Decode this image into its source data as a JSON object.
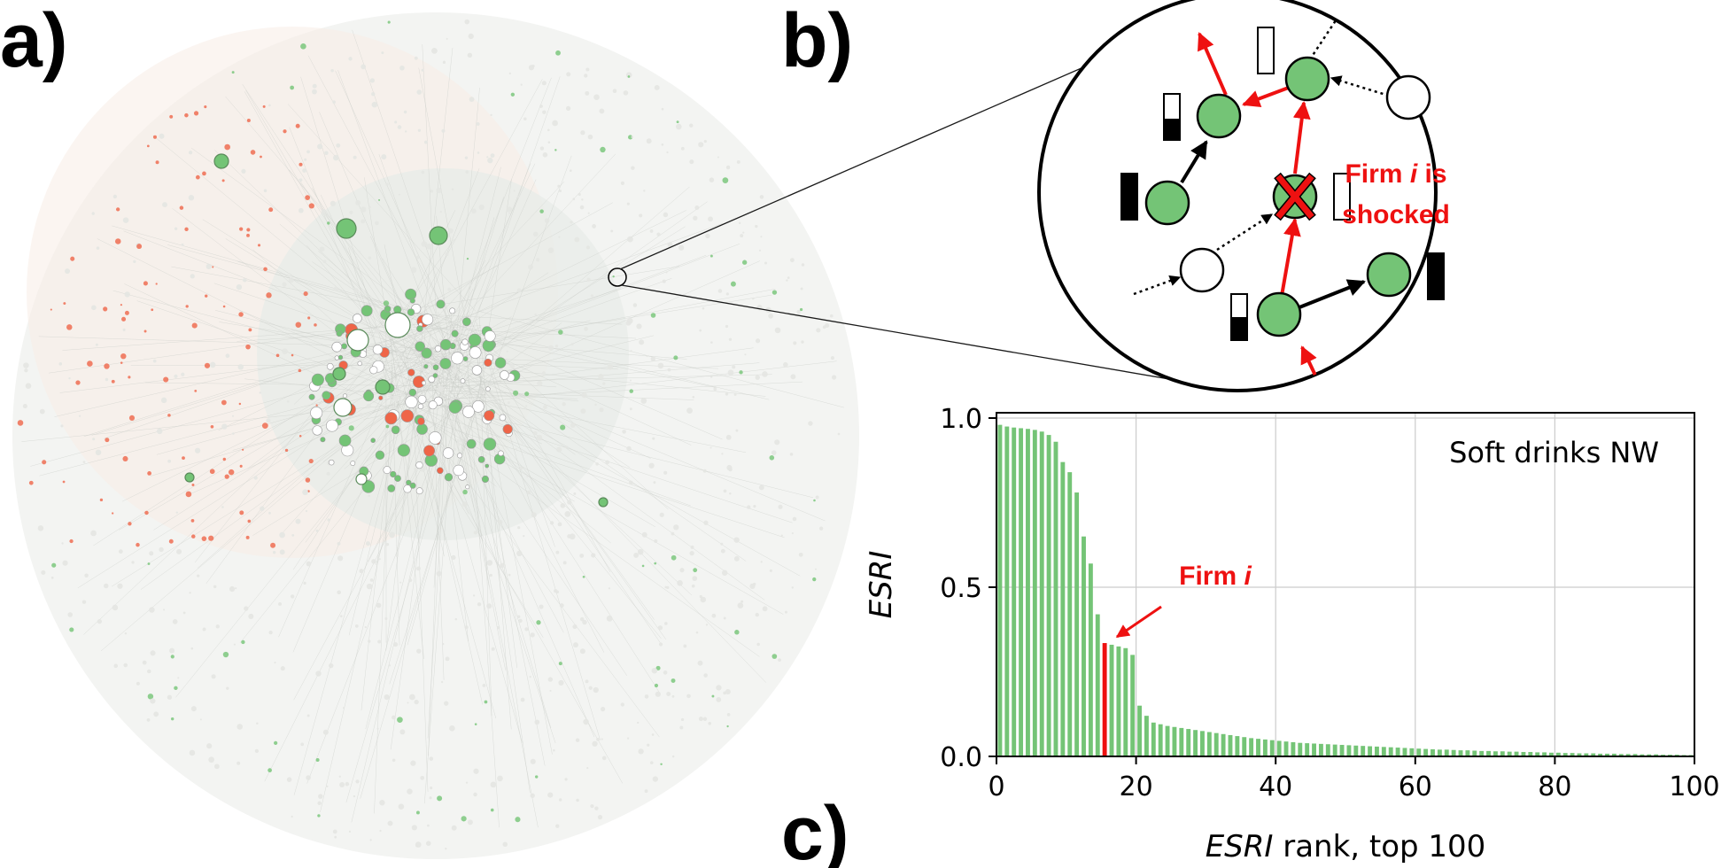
{
  "panels": {
    "a": "a)",
    "b": "b)",
    "c": "c)"
  },
  "colors": {
    "green": "#74c476",
    "red": "#ef6548",
    "edge_grey": "#d9d9d9",
    "shock_red": "#ee1111",
    "black": "#000000"
  },
  "network_inset": {
    "shock_label_line1": "Firm i is",
    "shock_label_line2": "shocked",
    "shock_label_italic": "i"
  },
  "chart_data": {
    "type": "bar",
    "title": "Soft drinks NW",
    "xlabel_italic": "ESRI",
    "xlabel_rest": " rank, top 100",
    "ylabel": "ESRI",
    "xlim": [
      0,
      100
    ],
    "ylim": [
      0,
      1.0
    ],
    "xticks": [
      0,
      20,
      40,
      60,
      80,
      100
    ],
    "yticks": [
      0.0,
      0.5,
      1.0
    ],
    "ytick_labels": [
      "0.0",
      "0.5",
      "1.0"
    ],
    "grid": true,
    "legend_position": "top-right",
    "highlight_rank": 16,
    "highlight_label_prefix": "Firm ",
    "highlight_label_italic": "i",
    "x": [
      1,
      2,
      3,
      4,
      5,
      6,
      7,
      8,
      9,
      10,
      11,
      12,
      13,
      14,
      15,
      16,
      17,
      18,
      19,
      20,
      21,
      22,
      23,
      24,
      25,
      26,
      27,
      28,
      29,
      30,
      31,
      32,
      33,
      34,
      35,
      36,
      37,
      38,
      39,
      40,
      41,
      42,
      43,
      44,
      45,
      46,
      47,
      48,
      49,
      50,
      51,
      52,
      53,
      54,
      55,
      56,
      57,
      58,
      59,
      60,
      61,
      62,
      63,
      64,
      65,
      66,
      67,
      68,
      69,
      70,
      71,
      72,
      73,
      74,
      75,
      76,
      77,
      78,
      79,
      80,
      81,
      82,
      83,
      84,
      85,
      86,
      87,
      88,
      89,
      90,
      91,
      92,
      93,
      94,
      95,
      96,
      97,
      98,
      99,
      100
    ],
    "values": [
      0.98,
      0.975,
      0.972,
      0.97,
      0.968,
      0.965,
      0.96,
      0.95,
      0.93,
      0.87,
      0.84,
      0.78,
      0.65,
      0.57,
      0.42,
      0.335,
      0.33,
      0.325,
      0.32,
      0.3,
      0.15,
      0.12,
      0.1,
      0.095,
      0.09,
      0.087,
      0.084,
      0.081,
      0.078,
      0.075,
      0.072,
      0.069,
      0.066,
      0.063,
      0.06,
      0.057,
      0.054,
      0.052,
      0.05,
      0.048,
      0.046,
      0.044,
      0.042,
      0.04,
      0.039,
      0.038,
      0.037,
      0.036,
      0.035,
      0.034,
      0.033,
      0.032,
      0.031,
      0.03,
      0.029,
      0.028,
      0.027,
      0.026,
      0.025,
      0.024,
      0.023,
      0.022,
      0.021,
      0.02,
      0.02,
      0.019,
      0.018,
      0.018,
      0.017,
      0.016,
      0.016,
      0.015,
      0.015,
      0.014,
      0.014,
      0.013,
      0.013,
      0.012,
      0.012,
      0.011,
      0.011,
      0.01,
      0.01,
      0.009,
      0.009,
      0.009,
      0.008,
      0.008,
      0.008,
      0.007,
      0.007,
      0.007,
      0.006,
      0.006,
      0.006,
      0.005,
      0.005,
      0.005,
      0.004,
      0.004
    ]
  }
}
